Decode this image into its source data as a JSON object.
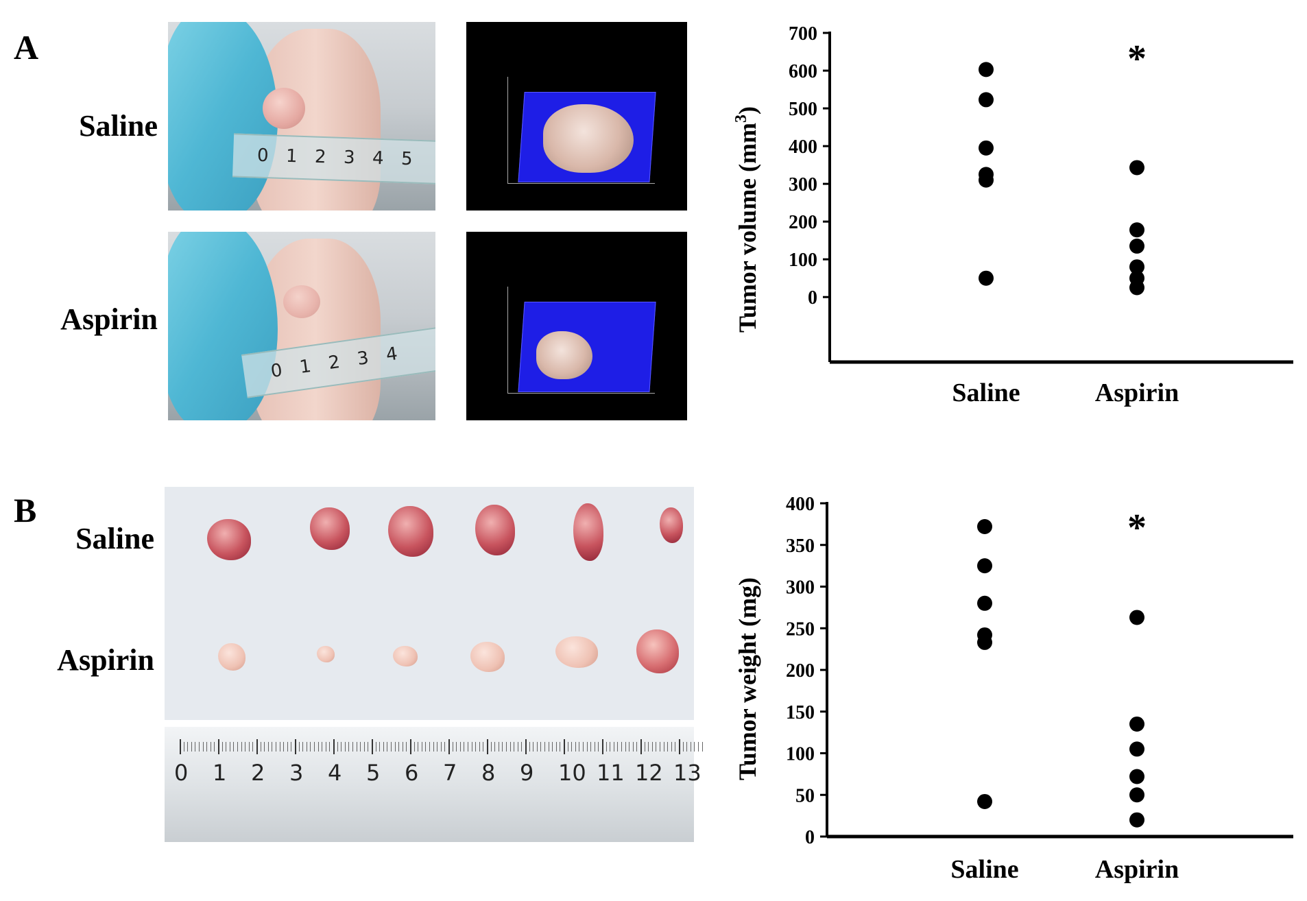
{
  "panels": {
    "a": {
      "letter": "A",
      "row_labels": [
        "Saline",
        "Aspirin"
      ]
    },
    "b": {
      "letter": "B",
      "row_labels": [
        "Saline",
        "Aspirin"
      ]
    }
  },
  "photos": {
    "mouse_ruler_saline": [
      "0",
      "1",
      "2",
      "3",
      "4",
      "5"
    ],
    "mouse_ruler_aspirin": [
      "0",
      "1",
      "2",
      "3",
      "4"
    ],
    "tumor_ruler": [
      "0",
      "1",
      "2",
      "3",
      "4",
      "5",
      "6",
      "7",
      "8",
      "9",
      "10",
      "11",
      "12",
      "13"
    ]
  },
  "chart_data": [
    {
      "type": "scatter",
      "title": "",
      "xlabel": "",
      "ylabel": "Tumor volume (mm³)",
      "ylabel_main": "Tumor volume (mm",
      "ylabel_sup": "3",
      "ylabel_end": ")",
      "categories": [
        "Saline",
        "Aspirin"
      ],
      "yticks": [
        0,
        100,
        200,
        300,
        400,
        500,
        600,
        700
      ],
      "ylim": [
        -85,
        700
      ],
      "annotation": "*",
      "series": [
        {
          "category": "Saline",
          "values": [
            603,
            523,
            395,
            325,
            310,
            50
          ]
        },
        {
          "category": "Aspirin",
          "values": [
            343,
            178,
            135,
            80,
            50,
            25
          ]
        }
      ],
      "marker_color": "#000000",
      "grid": false,
      "legend": "none"
    },
    {
      "type": "scatter",
      "title": "",
      "xlabel": "",
      "ylabel": "Tumor weight (mg)",
      "categories": [
        "Saline",
        "Aspirin"
      ],
      "yticks": [
        0,
        50,
        100,
        150,
        200,
        250,
        300,
        350,
        400
      ],
      "ylim": [
        0,
        400
      ],
      "annotation": "*",
      "series": [
        {
          "category": "Saline",
          "values": [
            372,
            325,
            280,
            242,
            233,
            42
          ]
        },
        {
          "category": "Aspirin",
          "values": [
            263,
            135,
            105,
            72,
            50,
            20
          ]
        }
      ],
      "marker_color": "#000000",
      "grid": false,
      "legend": "none"
    }
  ]
}
